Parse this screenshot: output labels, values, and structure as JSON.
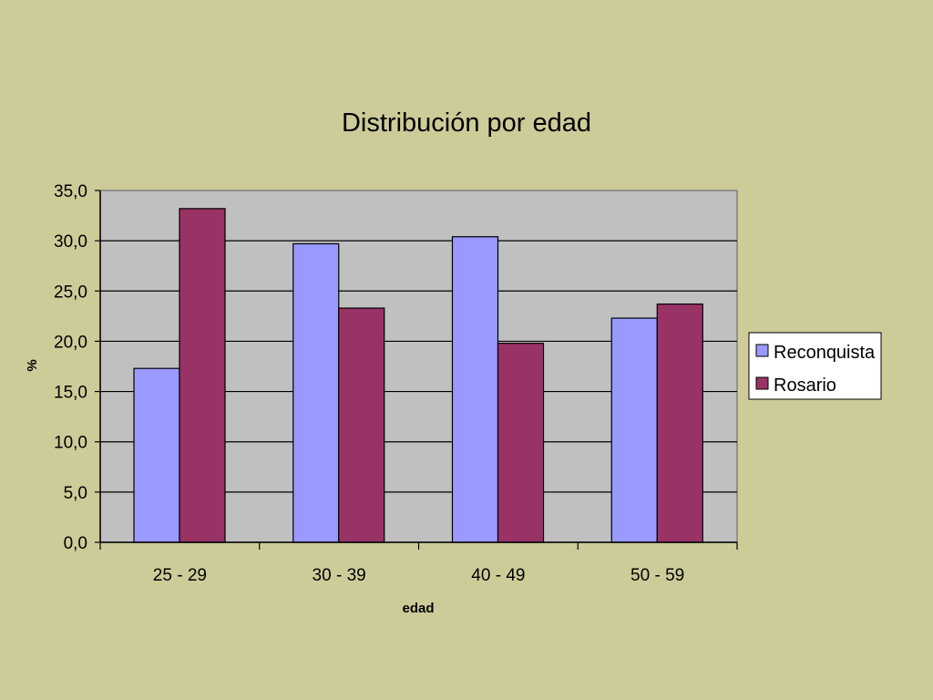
{
  "chart_data": {
    "type": "bar",
    "title": "Distribución por edad",
    "xlabel": "edad",
    "ylabel": "%",
    "categories": [
      "25 - 29",
      "30 - 39",
      "40 - 49",
      "50 - 59"
    ],
    "series": [
      {
        "name": "Reconquista",
        "color": "#9999ff",
        "values": [
          17.3,
          29.7,
          30.4,
          22.3
        ]
      },
      {
        "name": "Rosario",
        "color": "#993366",
        "values": [
          33.2,
          23.3,
          19.8,
          23.7
        ]
      }
    ],
    "ylim": [
      0,
      35
    ],
    "yticks": [
      "0,0",
      "5,0",
      "10,0",
      "15,0",
      "20,0",
      "25,0",
      "30,0",
      "35,0"
    ],
    "grid": true,
    "plot_background": "#c0c0c0",
    "legend_position": "right"
  }
}
